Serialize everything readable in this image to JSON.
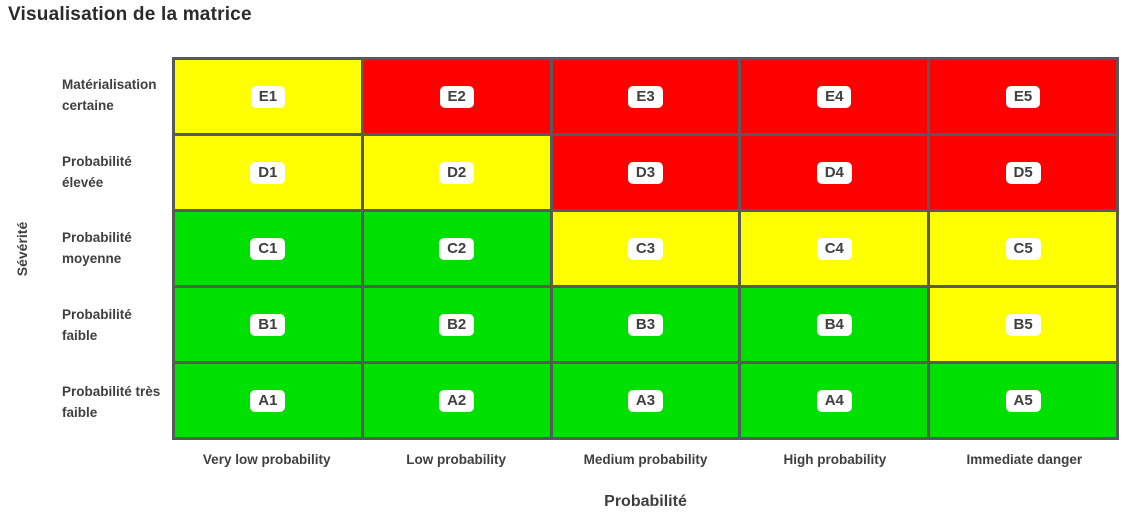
{
  "title": "Visualisation de la matrice",
  "theme": {
    "background": "#FFFFFF",
    "grid_border": "#595959",
    "badge_background": "#FFFFFF",
    "badge_text": "#404040",
    "label_text": "#3F3F3F",
    "title_text": "#2B2B2B"
  },
  "chart_data": {
    "type": "heatmap",
    "title": "Visualisation de la matrice",
    "xlabel": "Probabilité",
    "ylabel": "Sévérité",
    "x_categories": [
      "Very low probability",
      "Low probability",
      "Medium probability",
      "High probability",
      "Immediate danger"
    ],
    "y_categories": [
      "Matérialisation certaine",
      "Probabilité élevée",
      "Probabilité moyenne",
      "Probabilité faible",
      "Probabilité très faible"
    ],
    "color_map": {
      "red": "#FF0000",
      "yellow": "#FFFF00",
      "green": "#00E000"
    },
    "legend": "none",
    "grid": "on",
    "rows": [
      {
        "label": "Matérialisation certaine",
        "cells": [
          {
            "id": "E1",
            "risk": "yellow"
          },
          {
            "id": "E2",
            "risk": "red"
          },
          {
            "id": "E3",
            "risk": "red"
          },
          {
            "id": "E4",
            "risk": "red"
          },
          {
            "id": "E5",
            "risk": "red"
          }
        ]
      },
      {
        "label": "Probabilité élevée",
        "cells": [
          {
            "id": "D1",
            "risk": "yellow"
          },
          {
            "id": "D2",
            "risk": "yellow"
          },
          {
            "id": "D3",
            "risk": "red"
          },
          {
            "id": "D4",
            "risk": "red"
          },
          {
            "id": "D5",
            "risk": "red"
          }
        ]
      },
      {
        "label": "Probabilité moyenne",
        "cells": [
          {
            "id": "C1",
            "risk": "green"
          },
          {
            "id": "C2",
            "risk": "green"
          },
          {
            "id": "C3",
            "risk": "yellow"
          },
          {
            "id": "C4",
            "risk": "yellow"
          },
          {
            "id": "C5",
            "risk": "yellow"
          }
        ]
      },
      {
        "label": "Probabilité faible",
        "cells": [
          {
            "id": "B1",
            "risk": "green"
          },
          {
            "id": "B2",
            "risk": "green"
          },
          {
            "id": "B3",
            "risk": "green"
          },
          {
            "id": "B4",
            "risk": "green"
          },
          {
            "id": "B5",
            "risk": "yellow"
          }
        ]
      },
      {
        "label": "Probabilité très faible",
        "cells": [
          {
            "id": "A1",
            "risk": "green"
          },
          {
            "id": "A2",
            "risk": "green"
          },
          {
            "id": "A3",
            "risk": "green"
          },
          {
            "id": "A4",
            "risk": "green"
          },
          {
            "id": "A5",
            "risk": "green"
          }
        ]
      }
    ]
  }
}
